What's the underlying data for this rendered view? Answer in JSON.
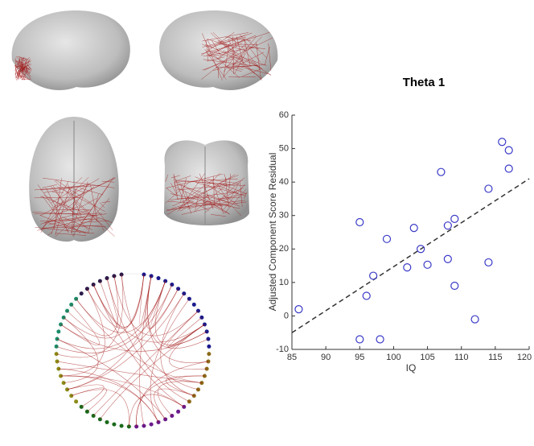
{
  "chart_data": {
    "type": "scatter",
    "title": "Theta 1",
    "x_label": "IQ",
    "y_label": "Adjusted Component Score Residual",
    "x": [
      86,
      95,
      95,
      96,
      97,
      98,
      99,
      102,
      103,
      104,
      105,
      107,
      108,
      108,
      109,
      109,
      112,
      114,
      114,
      116,
      117,
      117
    ],
    "values": [
      2,
      28,
      -7,
      6,
      12,
      -7,
      23,
      14.5,
      26.3,
      20,
      15.3,
      43,
      17,
      27,
      29,
      9,
      -1,
      38,
      16,
      52,
      49.5,
      44
    ],
    "color": "#3a3ac8",
    "fit_line": {
      "x": [
        85,
        120
      ],
      "y": [
        -5,
        41
      ],
      "color": "#333333"
    },
    "xlim": [
      85,
      120
    ],
    "xticks": [
      85,
      90,
      95,
      100,
      105,
      110,
      115,
      120
    ],
    "ylim": [
      -10,
      60
    ],
    "yticks": [
      -10,
      0,
      10,
      20,
      30,
      40,
      50,
      60
    ]
  }
}
